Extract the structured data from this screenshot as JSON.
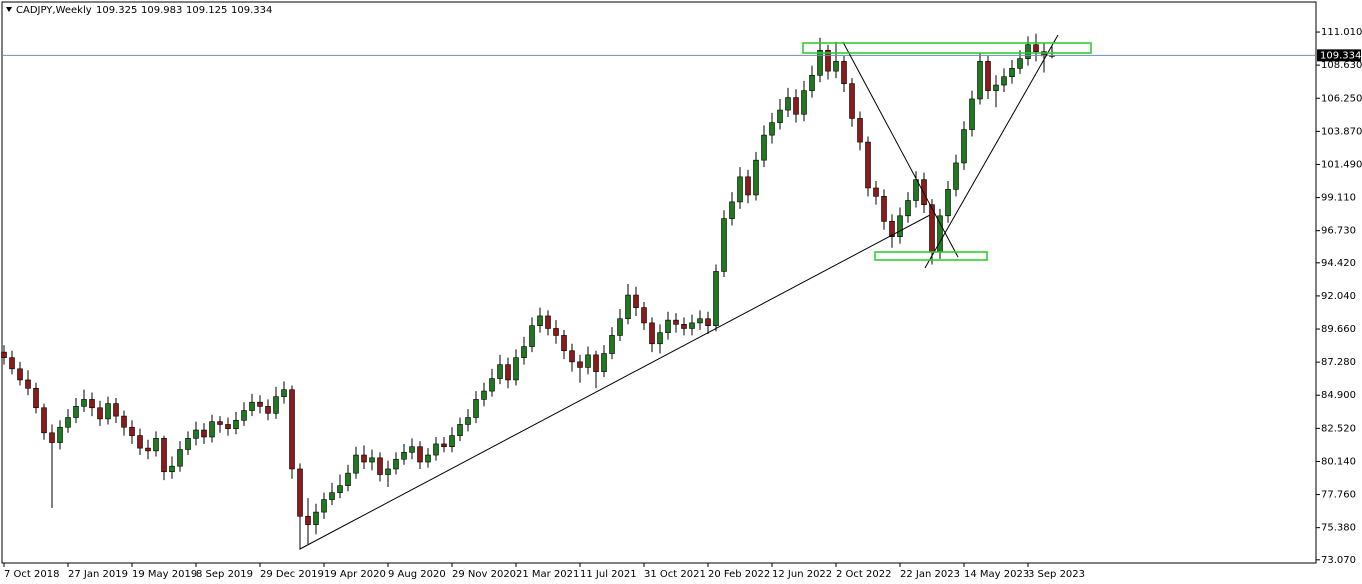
{
  "chart_data": {
    "type": "candlestick",
    "title": "CADJPY,Weekly",
    "up_color": "#1f7a1f",
    "down_color": "#8b1a1a",
    "wick_color": "#000000",
    "price_line_color": "#6f8fb4",
    "ylim": [
      72.84,
      113.17
    ],
    "yticks": [
      {
        "value": 73.07,
        "label": "73.070"
      },
      {
        "value": 75.38,
        "label": "75.380"
      },
      {
        "value": 77.76,
        "label": "77.760"
      },
      {
        "value": 80.14,
        "label": "80.140"
      },
      {
        "value": 82.52,
        "label": "82.520"
      },
      {
        "value": 84.9,
        "label": "84.900"
      },
      {
        "value": 87.28,
        "label": "87.280"
      },
      {
        "value": 89.66,
        "label": "89.660"
      },
      {
        "value": 92.04,
        "label": "92.040"
      },
      {
        "value": 94.42,
        "label": "94.420"
      },
      {
        "value": 96.73,
        "label": "96.730"
      },
      {
        "value": 99.11,
        "label": "99.110"
      },
      {
        "value": 101.49,
        "label": "101.490"
      },
      {
        "value": 103.87,
        "label": "103.870"
      },
      {
        "value": 106.25,
        "label": "106.250"
      },
      {
        "value": 108.63,
        "label": "108.630"
      },
      {
        "value": 111.01,
        "label": "111.010"
      }
    ],
    "categories": [
      "7 Oct 2018",
      null,
      null,
      null,
      null,
      null,
      null,
      null,
      "27 Jan 2019",
      null,
      null,
      null,
      null,
      null,
      null,
      null,
      "19 May 2019",
      null,
      null,
      null,
      null,
      null,
      null,
      null,
      "8 Sep 2019",
      null,
      null,
      null,
      null,
      null,
      null,
      null,
      "29 Dec 2019",
      null,
      null,
      null,
      null,
      null,
      null,
      null,
      "19 Apr 2020",
      null,
      null,
      null,
      null,
      null,
      null,
      null,
      "9 Aug 2020",
      null,
      null,
      null,
      null,
      null,
      null,
      null,
      "29 Nov 2020",
      null,
      null,
      null,
      null,
      null,
      null,
      null,
      "21 Mar 2021",
      null,
      null,
      null,
      null,
      null,
      null,
      null,
      "11 Jul 2021",
      null,
      null,
      null,
      null,
      null,
      null,
      null,
      "31 Oct 2021",
      null,
      null,
      null,
      null,
      null,
      null,
      null,
      "20 Feb 2022",
      null,
      null,
      null,
      null,
      null,
      null,
      null,
      "12 Jun 2022",
      null,
      null,
      null,
      null,
      null,
      null,
      null,
      "2 Oct 2022",
      null,
      null,
      null,
      null,
      null,
      null,
      null,
      "22 Jan 2023",
      null,
      null,
      null,
      null,
      null,
      null,
      null,
      "14 May 2023",
      null,
      null,
      null,
      null,
      null,
      null,
      null,
      "3 Sep 2023",
      null,
      null,
      null
    ],
    "ohlc": [
      [
        88.0,
        88.5,
        87.1,
        87.6
      ],
      [
        87.6,
        88.1,
        86.4,
        86.8
      ],
      [
        86.8,
        87.3,
        85.6,
        86.0
      ],
      [
        86.0,
        86.7,
        84.9,
        85.4
      ],
      [
        85.4,
        85.8,
        83.6,
        84.0
      ],
      [
        84.0,
        84.3,
        81.7,
        82.2
      ],
      [
        82.2,
        82.8,
        76.8,
        81.5
      ],
      [
        81.5,
        83.1,
        81.0,
        82.6
      ],
      [
        82.6,
        83.9,
        82.2,
        83.3
      ],
      [
        83.3,
        84.7,
        82.9,
        84.1
      ],
      [
        84.1,
        85.3,
        83.7,
        84.6
      ],
      [
        84.6,
        85.1,
        83.4,
        84.0
      ],
      [
        84.0,
        84.5,
        82.7,
        83.2
      ],
      [
        83.2,
        84.8,
        82.8,
        84.3
      ],
      [
        84.3,
        84.7,
        82.9,
        83.4
      ],
      [
        83.4,
        83.8,
        82.0,
        82.6
      ],
      [
        82.6,
        83.1,
        81.4,
        82.0
      ],
      [
        82.0,
        82.5,
        80.6,
        81.1
      ],
      [
        81.1,
        81.7,
        80.3,
        80.9
      ],
      [
        80.9,
        82.3,
        80.5,
        81.8
      ],
      [
        81.8,
        82.0,
        78.8,
        79.4
      ],
      [
        79.4,
        80.5,
        78.9,
        79.8
      ],
      [
        79.8,
        81.6,
        79.4,
        81.0
      ],
      [
        81.0,
        82.3,
        80.6,
        81.8
      ],
      [
        81.8,
        83.0,
        81.3,
        82.4
      ],
      [
        82.4,
        82.9,
        81.4,
        81.9
      ],
      [
        81.9,
        83.5,
        81.5,
        83.0
      ],
      [
        83.0,
        83.4,
        82.2,
        82.8
      ],
      [
        82.8,
        83.3,
        82.0,
        82.5
      ],
      [
        82.5,
        83.7,
        82.1,
        83.1
      ],
      [
        83.1,
        84.4,
        82.7,
        83.8
      ],
      [
        83.8,
        85.0,
        83.4,
        84.4
      ],
      [
        84.4,
        84.9,
        83.6,
        84.1
      ],
      [
        84.1,
        84.6,
        83.1,
        83.6
      ],
      [
        83.6,
        85.5,
        83.2,
        84.8
      ],
      [
        84.8,
        85.9,
        84.3,
        85.3
      ],
      [
        85.3,
        85.6,
        78.9,
        79.6
      ],
      [
        79.6,
        80.0,
        73.8,
        76.2
      ],
      [
        76.2,
        77.5,
        74.2,
        75.6
      ],
      [
        75.6,
        77.1,
        74.9,
        76.5
      ],
      [
        76.5,
        77.9,
        76.0,
        77.4
      ],
      [
        77.4,
        78.6,
        77.0,
        77.9
      ],
      [
        77.9,
        79.2,
        77.5,
        78.4
      ],
      [
        78.4,
        79.9,
        78.0,
        79.3
      ],
      [
        79.3,
        81.2,
        78.9,
        80.6
      ],
      [
        80.6,
        81.3,
        79.6,
        80.1
      ],
      [
        80.1,
        81.0,
        79.5,
        80.4
      ],
      [
        80.4,
        80.8,
        78.7,
        79.2
      ],
      [
        79.2,
        80.2,
        78.3,
        79.6
      ],
      [
        79.6,
        80.8,
        79.2,
        80.3
      ],
      [
        80.3,
        81.4,
        79.9,
        80.8
      ],
      [
        80.8,
        81.8,
        80.3,
        81.2
      ],
      [
        81.2,
        81.6,
        79.6,
        80.1
      ],
      [
        80.1,
        81.1,
        79.7,
        80.6
      ],
      [
        80.6,
        81.9,
        80.2,
        81.4
      ],
      [
        81.4,
        81.9,
        80.8,
        81.2
      ],
      [
        81.2,
        82.6,
        80.8,
        82.0
      ],
      [
        82.0,
        83.3,
        81.6,
        82.8
      ],
      [
        82.8,
        83.9,
        82.3,
        83.3
      ],
      [
        83.3,
        85.2,
        82.9,
        84.6
      ],
      [
        84.6,
        85.8,
        84.1,
        85.2
      ],
      [
        85.2,
        86.8,
        84.8,
        86.1
      ],
      [
        86.1,
        87.8,
        85.7,
        87.1
      ],
      [
        87.1,
        87.6,
        85.4,
        86.0
      ],
      [
        86.0,
        88.2,
        85.6,
        87.6
      ],
      [
        87.6,
        89.1,
        87.1,
        88.4
      ],
      [
        88.4,
        90.5,
        88.0,
        89.9
      ],
      [
        89.9,
        91.2,
        89.4,
        90.6
      ],
      [
        90.6,
        91.0,
        89.2,
        89.7
      ],
      [
        89.7,
        90.3,
        88.6,
        89.2
      ],
      [
        89.2,
        89.6,
        87.5,
        88.1
      ],
      [
        88.1,
        88.6,
        86.6,
        87.3
      ],
      [
        87.3,
        87.8,
        85.8,
        86.9
      ],
      [
        86.9,
        88.4,
        86.4,
        87.8
      ],
      [
        87.8,
        88.1,
        85.4,
        86.6
      ],
      [
        86.6,
        88.5,
        86.2,
        87.9
      ],
      [
        87.9,
        89.8,
        87.5,
        89.2
      ],
      [
        89.2,
        91.1,
        88.8,
        90.4
      ],
      [
        90.4,
        92.9,
        90.0,
        92.1
      ],
      [
        92.1,
        92.7,
        90.6,
        91.2
      ],
      [
        91.2,
        91.6,
        89.6,
        90.1
      ],
      [
        90.1,
        90.5,
        88.0,
        88.6
      ],
      [
        88.6,
        90.0,
        87.9,
        89.4
      ],
      [
        89.4,
        90.9,
        88.9,
        90.3
      ],
      [
        90.3,
        90.8,
        89.4,
        90.0
      ],
      [
        90.0,
        90.5,
        89.2,
        89.7
      ],
      [
        89.7,
        90.7,
        89.2,
        90.1
      ],
      [
        90.1,
        91.0,
        89.6,
        90.4
      ],
      [
        90.4,
        90.9,
        89.3,
        89.9
      ],
      [
        89.9,
        94.3,
        89.5,
        93.8
      ],
      [
        93.8,
        98.2,
        93.4,
        97.6
      ],
      [
        97.6,
        99.5,
        97.1,
        98.8
      ],
      [
        98.8,
        101.3,
        98.3,
        100.6
      ],
      [
        100.6,
        101.1,
        98.7,
        99.3
      ],
      [
        99.3,
        102.4,
        98.9,
        101.8
      ],
      [
        101.8,
        104.3,
        101.3,
        103.6
      ],
      [
        103.6,
        105.2,
        103.0,
        104.5
      ],
      [
        104.5,
        106.2,
        104.0,
        105.4
      ],
      [
        105.4,
        107.0,
        104.9,
        106.3
      ],
      [
        106.3,
        106.9,
        104.5,
        105.1
      ],
      [
        105.1,
        107.5,
        104.6,
        106.8
      ],
      [
        106.8,
        108.6,
        106.3,
        107.9
      ],
      [
        107.9,
        110.6,
        107.4,
        109.7
      ],
      [
        109.7,
        110.1,
        107.6,
        108.2
      ],
      [
        108.2,
        110.3,
        107.7,
        108.9
      ],
      [
        108.9,
        109.3,
        106.7,
        107.3
      ],
      [
        107.3,
        107.7,
        104.2,
        104.8
      ],
      [
        104.8,
        105.3,
        102.5,
        103.1
      ],
      [
        103.1,
        103.5,
        99.2,
        99.8
      ],
      [
        99.8,
        100.3,
        98.6,
        99.2
      ],
      [
        99.2,
        99.7,
        96.8,
        97.4
      ],
      [
        97.4,
        97.9,
        95.5,
        96.3
      ],
      [
        96.3,
        98.4,
        95.8,
        97.8
      ],
      [
        97.8,
        99.5,
        97.3,
        98.9
      ],
      [
        98.9,
        101.0,
        98.4,
        100.4
      ],
      [
        100.4,
        100.9,
        98.0,
        98.6
      ],
      [
        98.6,
        99.0,
        94.3,
        95.2
      ],
      [
        95.2,
        98.3,
        94.7,
        97.8
      ],
      [
        97.8,
        100.3,
        97.3,
        99.7
      ],
      [
        99.7,
        102.2,
        99.2,
        101.6
      ],
      [
        101.6,
        104.6,
        101.1,
        104.0
      ],
      [
        104.0,
        106.8,
        103.5,
        106.2
      ],
      [
        106.2,
        109.5,
        105.8,
        108.9
      ],
      [
        108.9,
        109.3,
        106.2,
        106.8
      ],
      [
        106.8,
        107.9,
        105.6,
        107.2
      ],
      [
        107.2,
        108.4,
        106.7,
        107.8
      ],
      [
        107.8,
        109.0,
        107.3,
        108.4
      ],
      [
        108.4,
        109.7,
        108.0,
        109.1
      ],
      [
        109.1,
        110.7,
        108.6,
        110.1
      ],
      [
        110.1,
        110.9,
        108.9,
        109.6
      ],
      [
        109.6,
        110.2,
        108.1,
        109.3
      ],
      [
        109.325,
        109.983,
        109.125,
        109.334
      ]
    ]
  }
}
